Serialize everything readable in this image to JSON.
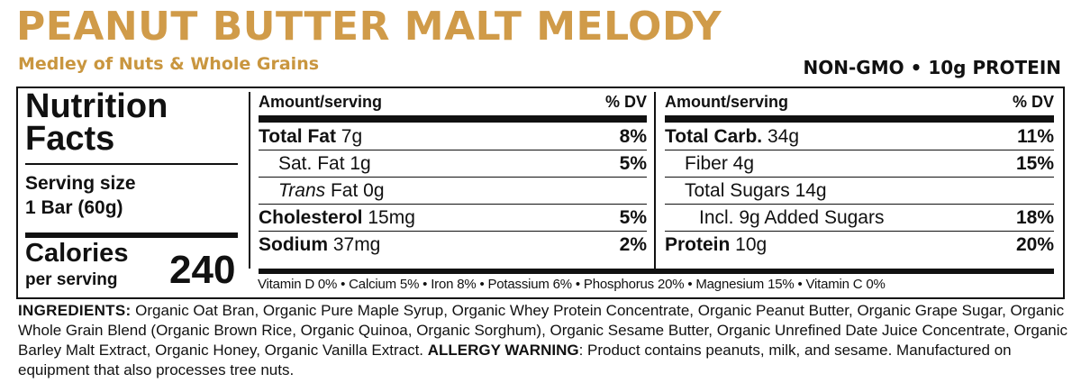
{
  "header": {
    "title": "PEANUT BUTTER MALT MELODY",
    "subtitle": "Medley of Nuts & Whole Grains",
    "claims": "NON-GMO • 10g PROTEIN"
  },
  "colors": {
    "brand": "#d09b49",
    "ink": "#111111",
    "background": "#ffffff"
  },
  "nutrition": {
    "title_line1": "Nutrition",
    "title_line2": "Facts",
    "serving_size_label": "Serving size",
    "serving_size_value": "1 Bar (60g)",
    "calories_label": "Calories",
    "calories_sub": "per serving",
    "calories_value": "240",
    "left": {
      "header_amount": "Amount/serving",
      "header_dv": "% DV",
      "total_fat": {
        "name": "Total Fat",
        "amount": " 7g",
        "dv": "8%"
      },
      "sat_fat": {
        "name": "Sat. Fat 1g",
        "dv": "5%"
      },
      "trans_fat": {
        "name_italic": "Trans",
        "rest": " Fat 0g"
      },
      "cholesterol": {
        "name": "Cholesterol",
        "amount": " 15mg",
        "dv": "5%"
      },
      "sodium": {
        "name": "Sodium",
        "amount": " 37mg",
        "dv": "2%"
      }
    },
    "right": {
      "header_amount": "Amount/serving",
      "header_dv": "% DV",
      "total_carb": {
        "name": "Total Carb.",
        "amount": " 34g",
        "dv": "11%"
      },
      "fiber": {
        "name": "Fiber 4g",
        "dv": "15%"
      },
      "total_sugars": {
        "name": "Total Sugars 14g"
      },
      "added_sugars": {
        "name": "Incl. 9g Added Sugars",
        "dv": "18%"
      },
      "protein": {
        "name": "Protein",
        "amount": " 10g",
        "dv": "20%"
      }
    },
    "vitamins": "Vitamin D 0% • Calcium 5% • Iron 8% • Potassium 6% • Phosphorus 20% • Magnesium 15% • Vitamin C 0%"
  },
  "ingredients": {
    "label": "INGREDIENTS:",
    "text": " Organic Oat Bran, Organic Pure Maple Syrup, Organic Whey Protein Concentrate, Organic Peanut Butter, Organic Grape Sugar, Organic Whole Grain Blend (Organic Brown Rice, Organic Quinoa, Organic Sorghum), Organic Sesame Butter, Organic Unrefined Date Juice Concentrate, Organic Barley Malt Extract, Organic Honey, Organic Vanilla Extract. ",
    "warning_label": "ALLERGY WARNING",
    "warning_text": ": Product contains peanuts, milk, and sesame. Manufactured on equipment that also processes tree nuts."
  }
}
